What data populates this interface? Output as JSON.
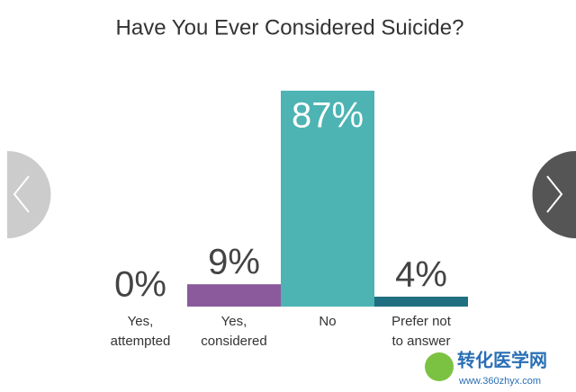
{
  "chart_data": {
    "type": "bar",
    "title": "Have You Ever Considered Suicide?",
    "categories": [
      "Yes,\nattempted",
      "Yes,\nconsidered",
      "No",
      "Prefer not\nto answer"
    ],
    "values": [
      0,
      9,
      87,
      4
    ],
    "value_labels": [
      "0%",
      "9%",
      "87%",
      "4%"
    ],
    "colors": [
      "#8a5a9c",
      "#8a5a9c",
      "#4db3b3",
      "#1f6f80"
    ]
  },
  "watermark": {
    "name": "转化医学网",
    "url": "www.360zhyx.com"
  }
}
